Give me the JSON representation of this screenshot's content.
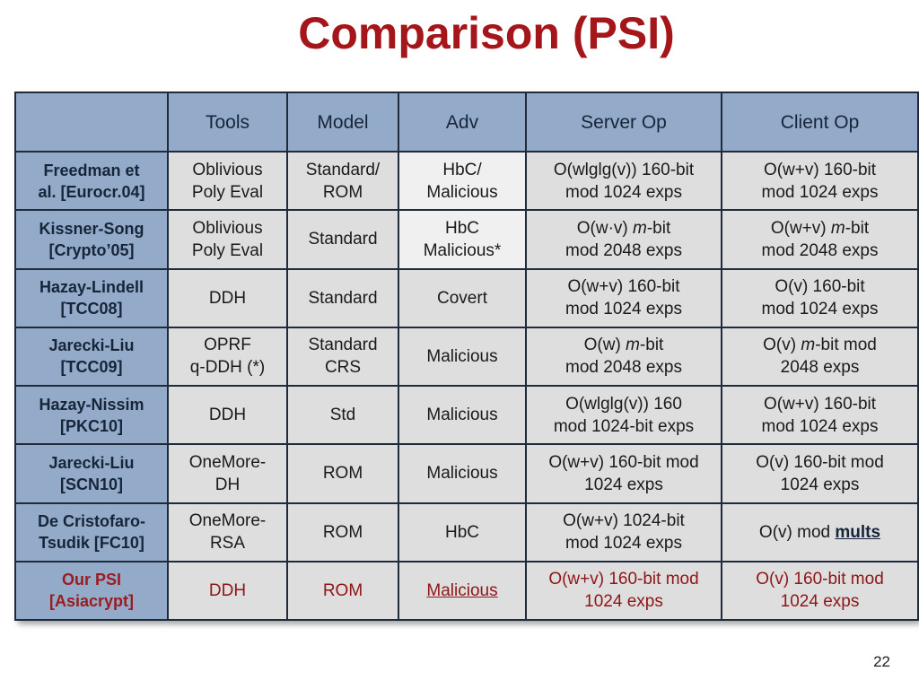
{
  "title": "Comparison (PSI)",
  "page_number": "22",
  "headers": [
    "",
    "Tools",
    "Model",
    "Adv",
    "Server Op",
    "Client Op"
  ],
  "rows": [
    {
      "scheme_line1": "Freedman et",
      "scheme_line2": "al. [Eurocr.04]",
      "tools_line1": "Oblivious",
      "tools_line2": "Poly Eval",
      "model_line1": "Standard/",
      "model_line2": "ROM",
      "adv_line1": "HbC/",
      "adv_line2": "Malicious",
      "server_line1": "O(wlglg(v)) 160-bit",
      "server_line2": "mod 1024 exps",
      "client_line1": "O(w+v) 160-bit",
      "client_line2": "mod 1024 exps"
    },
    {
      "scheme_line1": "Kissner-Song",
      "scheme_line2": "[Crypto’05]",
      "tools_line1": "Oblivious",
      "tools_line2": "Poly Eval",
      "model": "Standard",
      "adv_line1": "HbC",
      "adv_line2": "Malicious*",
      "server_pre": "O(w·v) ",
      "server_m": "m",
      "server_post": "-bit",
      "server_line2": "mod 2048 exps",
      "client_pre": "O(w+v) ",
      "client_m": "m",
      "client_post": "-bit",
      "client_line2": "mod 2048 exps"
    },
    {
      "scheme_line1": "Hazay-Lindell",
      "scheme_line2": "[TCC08]",
      "tools": "DDH",
      "model": "Standard",
      "adv": "Covert",
      "server_line1": "O(w+v) 160-bit",
      "server_line2": "mod 1024 exps",
      "client_line1": "O(v) 160-bit",
      "client_line2": "mod 1024 exps"
    },
    {
      "scheme_line1": "Jarecki-Liu",
      "scheme_line2": "[TCC09]",
      "tools_line1": "OPRF",
      "tools_line2": "q-DDH (*)",
      "model_line1": "Standard",
      "model_line2": "CRS",
      "adv": "Malicious",
      "server_pre": "O(w) ",
      "server_m": "m",
      "server_post": "-bit",
      "server_line2": "mod 2048 exps",
      "client_pre": "O(v) ",
      "client_m": "m",
      "client_post": "-bit mod",
      "client_line2": "2048 exps"
    },
    {
      "scheme_line1": "Hazay-Nissim",
      "scheme_line2": "[PKC10]",
      "tools": "DDH",
      "model": "Std",
      "adv": "Malicious",
      "server_line1": "O(wlglg(v)) 160",
      "server_line2": "mod 1024-bit exps",
      "client_line1": "O(w+v) 160-bit",
      "client_line2": "mod 1024 exps"
    },
    {
      "scheme_line1": "Jarecki-Liu",
      "scheme_line2": "[SCN10]",
      "tools_line1": "OneMore-",
      "tools_line2": "DH",
      "model": "ROM",
      "adv": "Malicious",
      "server_line1": "O(w+v) 160-bit mod",
      "server_line2": "1024 exps",
      "client_line1": "O(v) 160-bit mod",
      "client_line2": "1024 exps"
    },
    {
      "scheme_line1": "De Cristofaro-",
      "scheme_line2": "Tsudik [FC10]",
      "tools_line1": "OneMore-",
      "tools_line2": "RSA",
      "model": "ROM",
      "adv": "HbC",
      "server_line1": "O(w+v) 1024-bit",
      "server_line2": "mod 1024 exps",
      "client_pre": "O(v) mod ",
      "client_bold": "mults"
    },
    {
      "scheme_line1": "Our PSI",
      "scheme_line2": "[Asiacrypt]",
      "tools": "DDH",
      "model": "ROM",
      "adv": "Malicious",
      "server_line1": "O(w+v) 160-bit mod",
      "server_line2": "1024 exps",
      "client_line1": "O(v) 160-bit mod",
      "client_line2": "1024 exps"
    }
  ],
  "colors": {
    "title": "#a4161a",
    "header_bg": "#93aac8",
    "cell_bg": "#dedede",
    "highlight": "#8e1518"
  }
}
